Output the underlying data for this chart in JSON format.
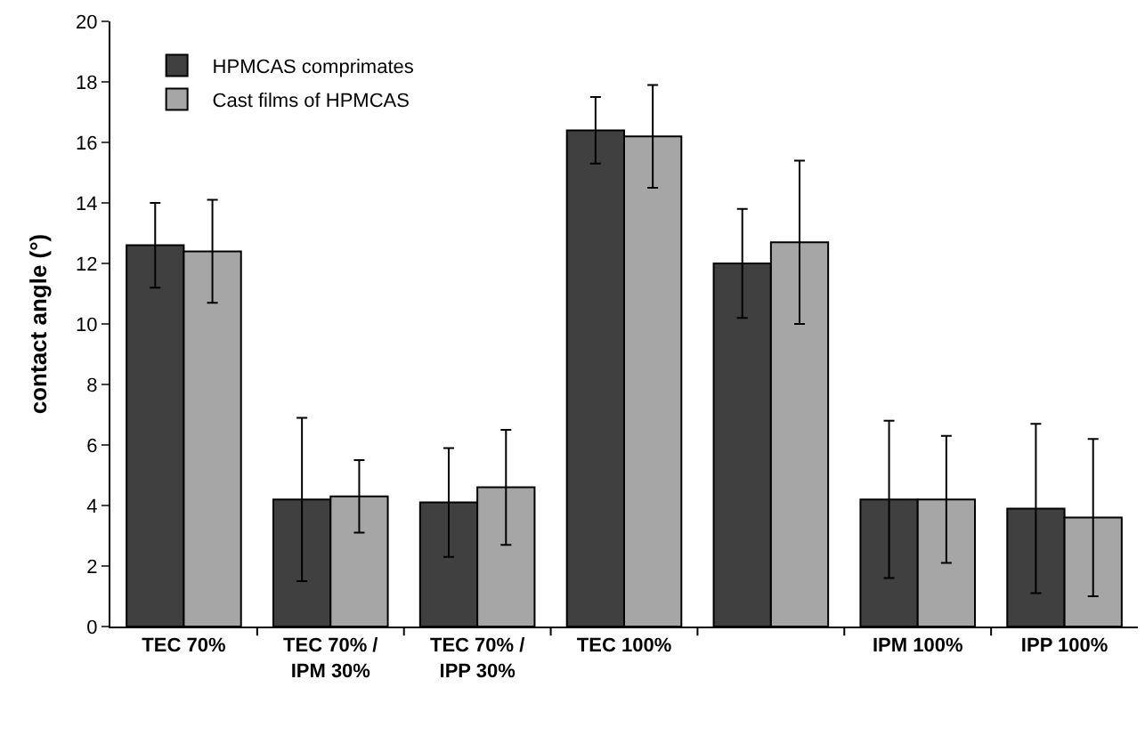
{
  "chart_data": {
    "type": "bar",
    "ylabel": "contact angle (°)",
    "categories": [
      "TEC 70%",
      "TEC 70% / IPM 30%",
      "TEC 70% / IPP 30%",
      "TEC 100%",
      null,
      "IPM 100%",
      "IPP 100%"
    ],
    "series": [
      {
        "name": "HPMCAS comprimates",
        "color": "#404040",
        "values": [
          12.6,
          4.2,
          4.1,
          16.4,
          12.0,
          4.2,
          3.9
        ],
        "errors": [
          [
            11.2,
            14.0
          ],
          [
            1.5,
            6.9
          ],
          [
            2.3,
            5.9
          ],
          [
            15.3,
            17.5
          ],
          [
            10.2,
            13.8
          ],
          [
            1.6,
            6.8
          ],
          [
            1.1,
            6.7
          ]
        ]
      },
      {
        "name": "Cast films of HPMCAS",
        "color": "#a6a6a6",
        "values": [
          12.4,
          4.3,
          4.6,
          16.2,
          12.7,
          4.2,
          3.6
        ],
        "errors": [
          [
            10.7,
            14.1
          ],
          [
            3.1,
            5.5
          ],
          [
            2.7,
            6.5
          ],
          [
            14.5,
            17.9
          ],
          [
            10.0,
            15.4
          ],
          [
            2.1,
            6.3
          ],
          [
            1.0,
            6.2
          ]
        ]
      }
    ],
    "ylim": [
      0,
      20
    ],
    "yticks": [
      0,
      2,
      4,
      6,
      8,
      10,
      12,
      14,
      16,
      18,
      20
    ],
    "grid": false,
    "legend": "top left"
  }
}
